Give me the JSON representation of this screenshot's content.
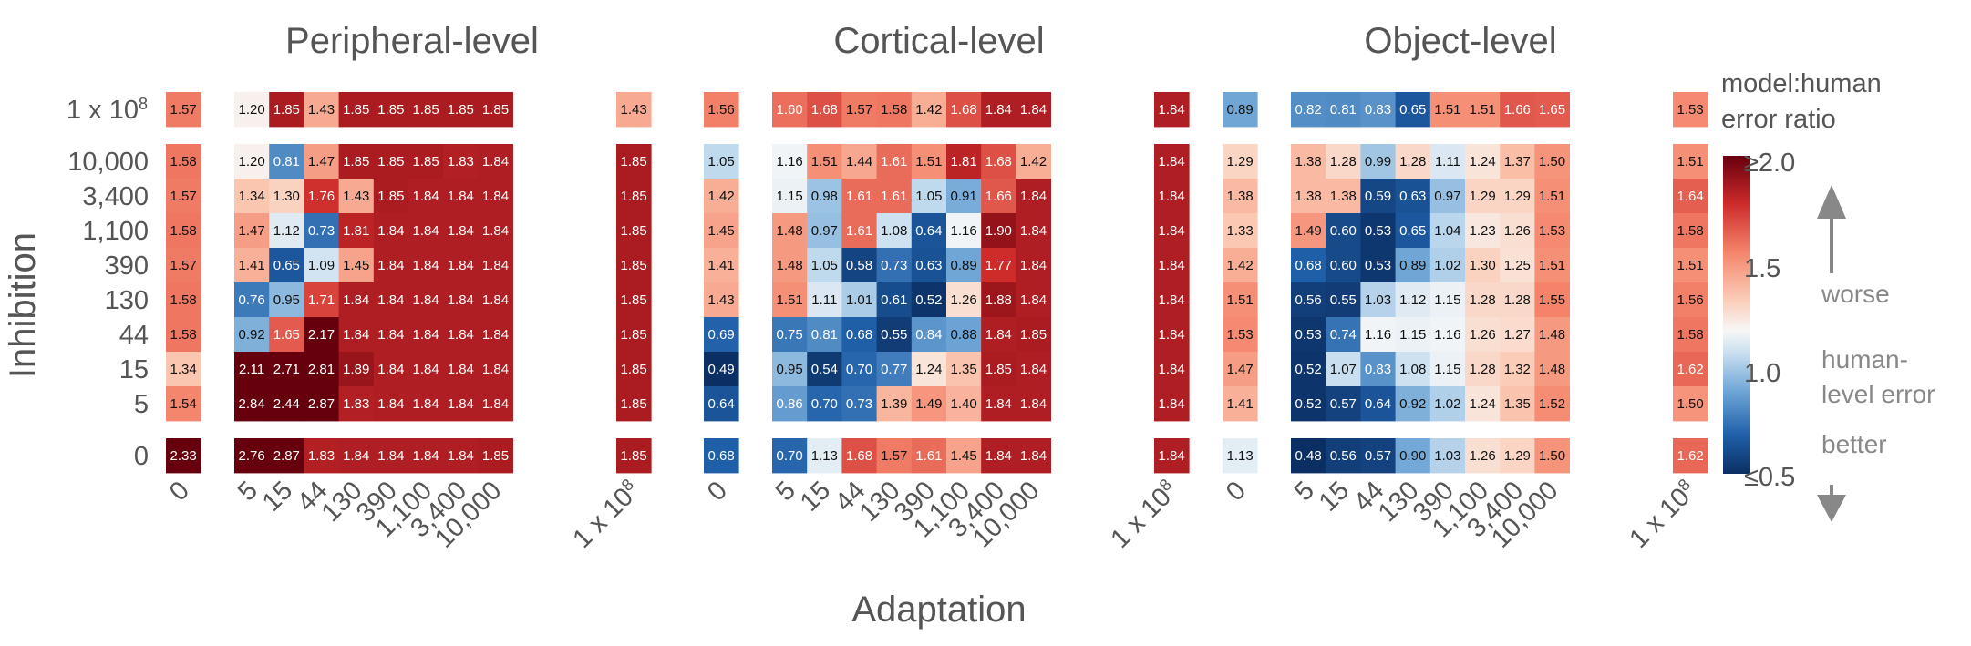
{
  "chart_data": {
    "type": "heatmap",
    "xlabel": "Adaptation",
    "ylabel": "Inhibition",
    "x_categories": [
      "0",
      "5",
      "15",
      "44",
      "130",
      "390",
      "1,100",
      "3,400",
      "10,000",
      "1 x 10^8"
    ],
    "y_categories": [
      "1 x 10^8",
      "10,000",
      "3,400",
      "1,100",
      "390",
      "130",
      "44",
      "15",
      "5",
      "0"
    ],
    "panels": [
      {
        "title": "Peripheral-level",
        "values": [
          [
            1.57,
            1.2,
            1.85,
            1.43,
            1.85,
            1.85,
            1.85,
            1.85,
            1.85,
            1.43
          ],
          [
            1.58,
            1.2,
            0.81,
            1.47,
            1.85,
            1.85,
            1.85,
            1.83,
            1.84,
            1.85
          ],
          [
            1.57,
            1.34,
            1.3,
            1.76,
            1.43,
            1.85,
            1.84,
            1.84,
            1.84,
            1.85
          ],
          [
            1.58,
            1.47,
            1.12,
            0.73,
            1.81,
            1.84,
            1.84,
            1.84,
            1.84,
            1.85
          ],
          [
            1.57,
            1.41,
            0.65,
            1.09,
            1.45,
            1.84,
            1.84,
            1.84,
            1.84,
            1.85
          ],
          [
            1.58,
            0.76,
            0.95,
            1.71,
            1.84,
            1.84,
            1.84,
            1.84,
            1.84,
            1.85
          ],
          [
            1.58,
            0.92,
            1.65,
            2.17,
            1.84,
            1.84,
            1.84,
            1.84,
            1.84,
            1.85
          ],
          [
            1.34,
            2.11,
            2.71,
            2.81,
            1.89,
            1.84,
            1.84,
            1.84,
            1.84,
            1.85
          ],
          [
            1.54,
            2.84,
            2.44,
            2.87,
            1.83,
            1.84,
            1.84,
            1.84,
            1.84,
            1.85
          ],
          [
            2.33,
            2.76,
            2.87,
            1.83,
            1.84,
            1.84,
            1.84,
            1.84,
            1.85,
            1.85
          ]
        ]
      },
      {
        "title": "Cortical-level",
        "values": [
          [
            1.56,
            1.6,
            1.68,
            1.57,
            1.58,
            1.42,
            1.68,
            1.84,
            1.84,
            1.84
          ],
          [
            1.05,
            1.16,
            1.51,
            1.44,
            1.61,
            1.51,
            1.81,
            1.68,
            1.42,
            1.84
          ],
          [
            1.42,
            1.15,
            0.98,
            1.61,
            1.61,
            1.05,
            0.91,
            1.66,
            1.84,
            1.84
          ],
          [
            1.45,
            1.48,
            0.97,
            1.61,
            1.08,
            0.64,
            1.16,
            1.9,
            1.84,
            1.84
          ],
          [
            1.41,
            1.48,
            1.05,
            0.58,
            0.73,
            0.63,
            0.89,
            1.77,
            1.84,
            1.84
          ],
          [
            1.43,
            1.51,
            1.11,
            1.01,
            0.61,
            0.52,
            1.26,
            1.88,
            1.84,
            1.84
          ],
          [
            0.69,
            0.75,
            0.81,
            0.68,
            0.55,
            0.84,
            0.88,
            1.84,
            1.85,
            1.84
          ],
          [
            0.49,
            0.95,
            0.54,
            0.7,
            0.77,
            1.24,
            1.35,
            1.85,
            1.84,
            1.84
          ],
          [
            0.64,
            0.86,
            0.7,
            0.73,
            1.39,
            1.49,
            1.4,
            1.84,
            1.84,
            1.84
          ],
          [
            0.68,
            0.7,
            1.13,
            1.68,
            1.57,
            1.61,
            1.45,
            1.84,
            1.84,
            1.84
          ]
        ]
      },
      {
        "title": "Object-level",
        "values": [
          [
            0.89,
            0.82,
            0.81,
            0.83,
            0.65,
            1.51,
            1.51,
            1.66,
            1.65,
            1.53
          ],
          [
            1.29,
            1.38,
            1.28,
            0.99,
            1.28,
            1.11,
            1.24,
            1.37,
            1.5,
            1.51
          ],
          [
            1.38,
            1.38,
            1.38,
            0.59,
            0.63,
            0.97,
            1.29,
            1.29,
            1.51,
            1.64
          ],
          [
            1.33,
            1.49,
            0.6,
            0.53,
            0.65,
            1.04,
            1.23,
            1.26,
            1.53,
            1.58
          ],
          [
            1.42,
            0.68,
            0.6,
            0.53,
            0.89,
            1.02,
            1.3,
            1.25,
            1.51,
            1.51
          ],
          [
            1.51,
            0.56,
            0.55,
            1.03,
            1.12,
            1.15,
            1.28,
            1.28,
            1.55,
            1.56
          ],
          [
            1.53,
            0.53,
            0.74,
            1.16,
            1.15,
            1.16,
            1.26,
            1.27,
            1.48,
            1.58
          ],
          [
            1.47,
            0.52,
            1.07,
            0.83,
            1.08,
            1.15,
            1.28,
            1.32,
            1.48,
            1.62
          ],
          [
            1.41,
            0.52,
            0.57,
            0.64,
            0.92,
            1.02,
            1.24,
            1.35,
            1.52,
            1.5
          ],
          [
            1.13,
            0.48,
            0.56,
            0.57,
            0.9,
            1.03,
            1.26,
            1.29,
            1.5,
            1.62
          ]
        ]
      }
    ],
    "colorbar": {
      "title_line1": "model:human",
      "title_line2": "error ratio",
      "ticks": [
        "≥2.0",
        "1.5",
        "1.0",
        "≤0.5"
      ],
      "range": [
        0.5,
        2.0
      ],
      "notes": {
        "worse": "worse",
        "human_level_1": "human-",
        "human_level_2": "level error",
        "better": "better"
      },
      "colors": {
        "low": "#0b2f63",
        "mid": "#f7f7f7",
        "high": "#67000d"
      }
    }
  }
}
